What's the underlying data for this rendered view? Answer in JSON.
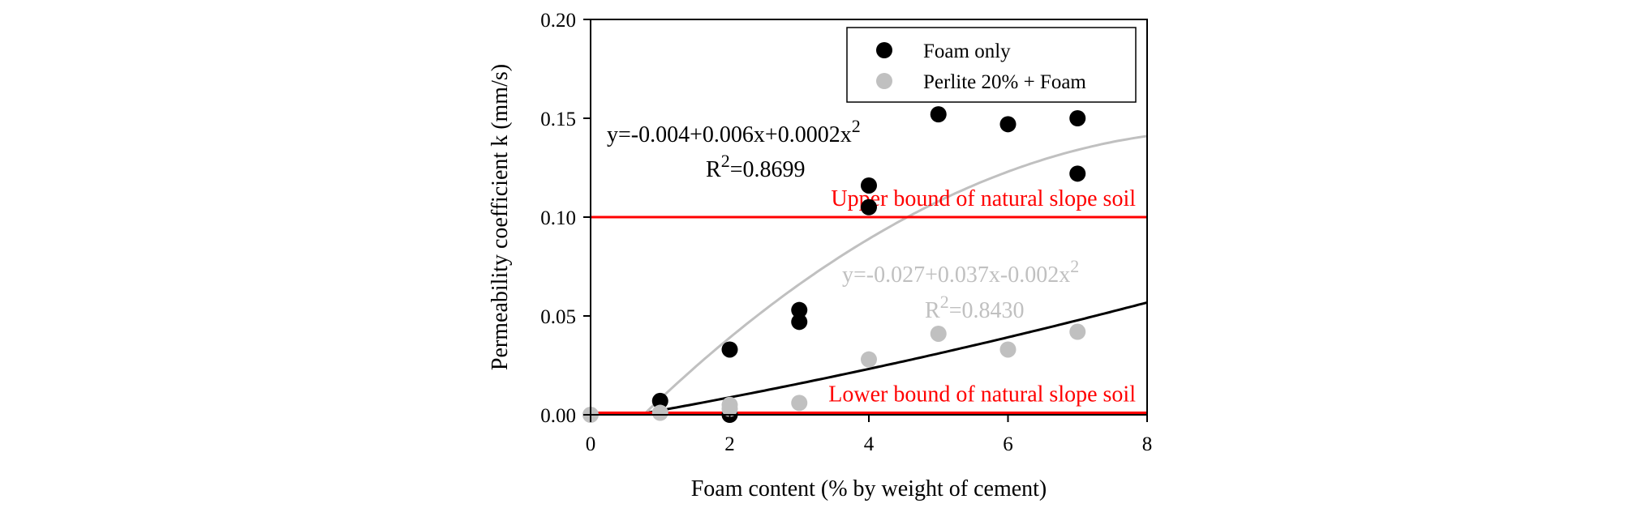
{
  "chart_data": {
    "type": "scatter",
    "title": "",
    "xlabel": "Foam content (% by weight of cement)",
    "ylabel": "Permeability coefficient k (mm/s)",
    "xlim": [
      0,
      8
    ],
    "ylim": [
      0,
      0.2
    ],
    "x_ticks": [
      0,
      2,
      4,
      6,
      8
    ],
    "x_tick_labels": [
      "0",
      "2",
      "4",
      "6",
      "8"
    ],
    "y_ticks": [
      0,
      0.05,
      0.1,
      0.15,
      0.2
    ],
    "y_tick_labels": [
      "0.00",
      "0.05",
      "0.10",
      "0.15",
      "0.20"
    ],
    "grid": false,
    "legend_position": "top-right",
    "series": [
      {
        "name": "Foam only",
        "color": "#000000",
        "points": [
          {
            "x": 1,
            "y": 0.007
          },
          {
            "x": 2,
            "y": 0.033
          },
          {
            "x": 2,
            "y": 0.0
          },
          {
            "x": 3,
            "y": 0.053
          },
          {
            "x": 3,
            "y": 0.047
          },
          {
            "x": 4,
            "y": 0.116
          },
          {
            "x": 4,
            "y": 0.105
          },
          {
            "x": 5,
            "y": 0.152
          },
          {
            "x": 6,
            "y": 0.147
          },
          {
            "x": 7,
            "y": 0.15
          },
          {
            "x": 7,
            "y": 0.122
          }
        ],
        "fit": {
          "coeffs": [
            -0.004,
            0.006,
            0.0002
          ],
          "x_range": [
            0.75,
            8
          ]
        },
        "equation": "y=-0.004+0.006x+0.0002x",
        "equation_exp": "2",
        "r2_prefix": "R",
        "r2_exp": "2",
        "r2_value": "=0.8699"
      },
      {
        "name": "Perlite 20% + Foam",
        "color": "#c0c0c0",
        "points": [
          {
            "x": 0,
            "y": 0.0
          },
          {
            "x": 1,
            "y": 0.001
          },
          {
            "x": 2,
            "y": 0.005
          },
          {
            "x": 2,
            "y": 0.003
          },
          {
            "x": 3,
            "y": 0.006
          },
          {
            "x": 4,
            "y": 0.028
          },
          {
            "x": 5,
            "y": 0.041
          },
          {
            "x": 6,
            "y": 0.033
          },
          {
            "x": 7,
            "y": 0.042
          }
        ],
        "fit": {
          "coeffs": [
            -0.027,
            0.037,
            -0.002
          ],
          "x_range": [
            0.8,
            8
          ]
        },
        "equation": "y=-0.027+0.037x-0.002x",
        "equation_exp": "2",
        "r2_prefix": "R",
        "r2_exp": "2",
        "r2_value": "=0.8430"
      }
    ],
    "reference_lines": [
      {
        "y": 0.1,
        "label": "Upper bound of natural slope soil",
        "color": "#ff0000"
      },
      {
        "y": 0.001,
        "label": "Lower bound of natural slope soil",
        "color": "#ff0000"
      }
    ]
  }
}
